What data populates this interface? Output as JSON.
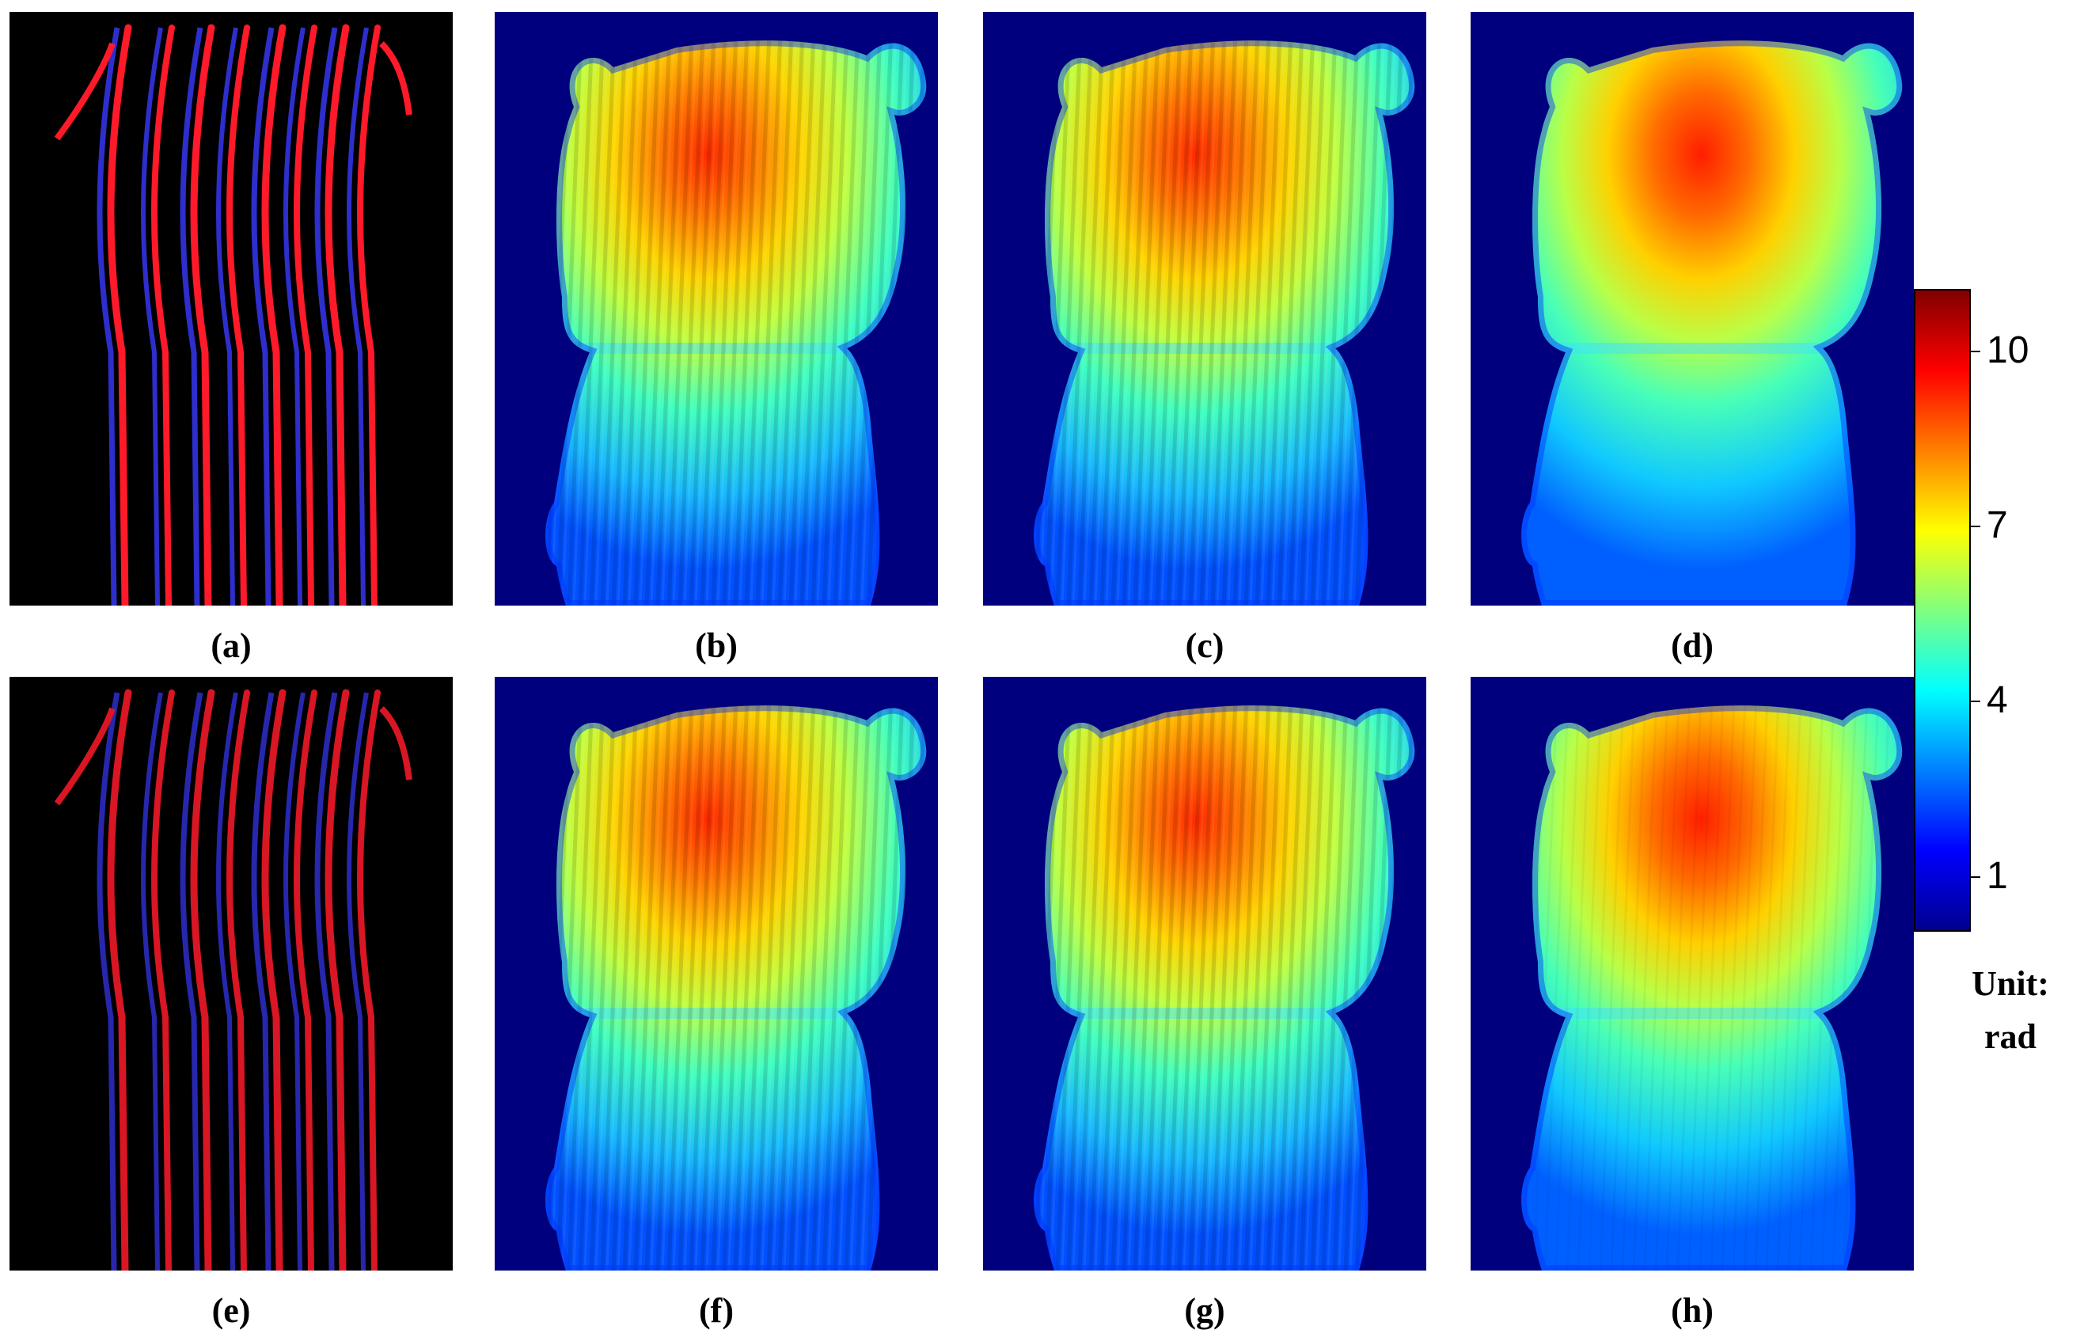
{
  "panels": [
    {
      "id": "a",
      "caption": "(a)",
      "kind": "fringe",
      "variant": 0
    },
    {
      "id": "b",
      "caption": "(b)",
      "kind": "wrapped",
      "variant": 0
    },
    {
      "id": "c",
      "caption": "(c)",
      "kind": "wrapped",
      "variant": 1
    },
    {
      "id": "d",
      "caption": "(d)",
      "kind": "unwrapped",
      "variant": 0
    },
    {
      "id": "e",
      "caption": "(e)",
      "kind": "fringe",
      "variant": 1
    },
    {
      "id": "f",
      "caption": "(f)",
      "kind": "wrapped",
      "variant": 0
    },
    {
      "id": "g",
      "caption": "(g)",
      "kind": "wrapped",
      "variant": 1
    },
    {
      "id": "h",
      "caption": "(h)",
      "kind": "unwrapped",
      "variant": 1
    }
  ],
  "colorbar": {
    "colormap": "jet",
    "min": 0,
    "max": 11,
    "ticks": [
      {
        "value": 10,
        "label": "10"
      },
      {
        "value": 7,
        "label": "7"
      },
      {
        "value": 4,
        "label": "4"
      },
      {
        "value": 1,
        "label": "1"
      }
    ],
    "unit_line1": "Unit:",
    "unit_line2": "rad"
  },
  "colors": {
    "background_blue": "#00007f",
    "fringe_red": "#ff1a2a",
    "fringe_blue": "#3a3aff"
  }
}
